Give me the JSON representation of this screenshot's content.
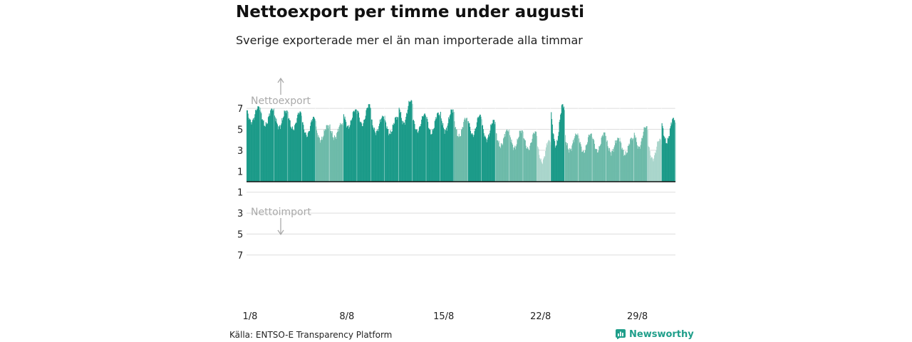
{
  "header": {
    "title": "Nettoexport per timme under augusti",
    "subtitle": "Sverige exporterade mer el än man importerade alla timmar"
  },
  "footer": {
    "source": "Källa: ENTSO-E Transparency Platform",
    "brand": "Newsworthy"
  },
  "colors": {
    "bar_dark": "#1a9a88",
    "bar_light": "#6cbaa9",
    "bar_pale": "#a9d5cb",
    "baseline": "#111111",
    "grid": "#dddddd",
    "annotation": "#aaaaaa",
    "brand": "#1f9e8a"
  },
  "chart_data": {
    "type": "bar",
    "x_unit": "hour",
    "x_start": "2023-08-01 00:00",
    "x_end": "2023-08-31 23:00",
    "x_ticks": [
      "1/8",
      "8/8",
      "15/8",
      "22/8",
      "29/8"
    ],
    "y_ticks_positive": [
      "7",
      "5",
      "3",
      "1"
    ],
    "y_ticks_negative": [
      "1",
      "3",
      "5",
      "7"
    ],
    "ylim": [
      -8,
      8
    ],
    "grid": true,
    "annotations": {
      "export": "Nettoexport",
      "import": "Nettoimport"
    },
    "series": [
      {
        "daily_max": [
          7.2,
          7.0,
          6.8,
          6.7,
          6.2,
          5.4,
          5.6,
          6.9,
          7.4,
          6.3,
          6.2,
          7.8,
          6.5,
          6.6,
          6.9,
          6.1,
          6.4,
          5.9,
          5.0,
          4.9,
          4.8,
          4.0,
          7.4,
          4.6,
          4.6,
          4.7,
          4.2,
          4.2,
          5.3,
          4.1,
          6.1
        ],
        "daily_min": [
          5.5,
          5.2,
          5.0,
          4.8,
          4.2,
          3.8,
          4.0,
          5.0,
          5.2,
          4.5,
          4.4,
          5.3,
          4.6,
          4.4,
          4.6,
          4.1,
          4.2,
          3.8,
          3.2,
          3.0,
          2.9,
          1.6,
          3.0,
          2.8,
          2.6,
          2.7,
          2.6,
          2.4,
          3.0,
          1.9,
          3.5
        ],
        "daily_shade": [
          "dark",
          "dark",
          "dark",
          "dark",
          "dark",
          "light",
          "light",
          "dark",
          "dark",
          "dark",
          "dark",
          "dark",
          "dark",
          "dark",
          "dark",
          "light",
          "dark",
          "dark",
          "light",
          "light",
          "light",
          "pale",
          "dark",
          "light",
          "light",
          "light",
          "light",
          "light",
          "light",
          "pale",
          "dark"
        ]
      }
    ]
  }
}
